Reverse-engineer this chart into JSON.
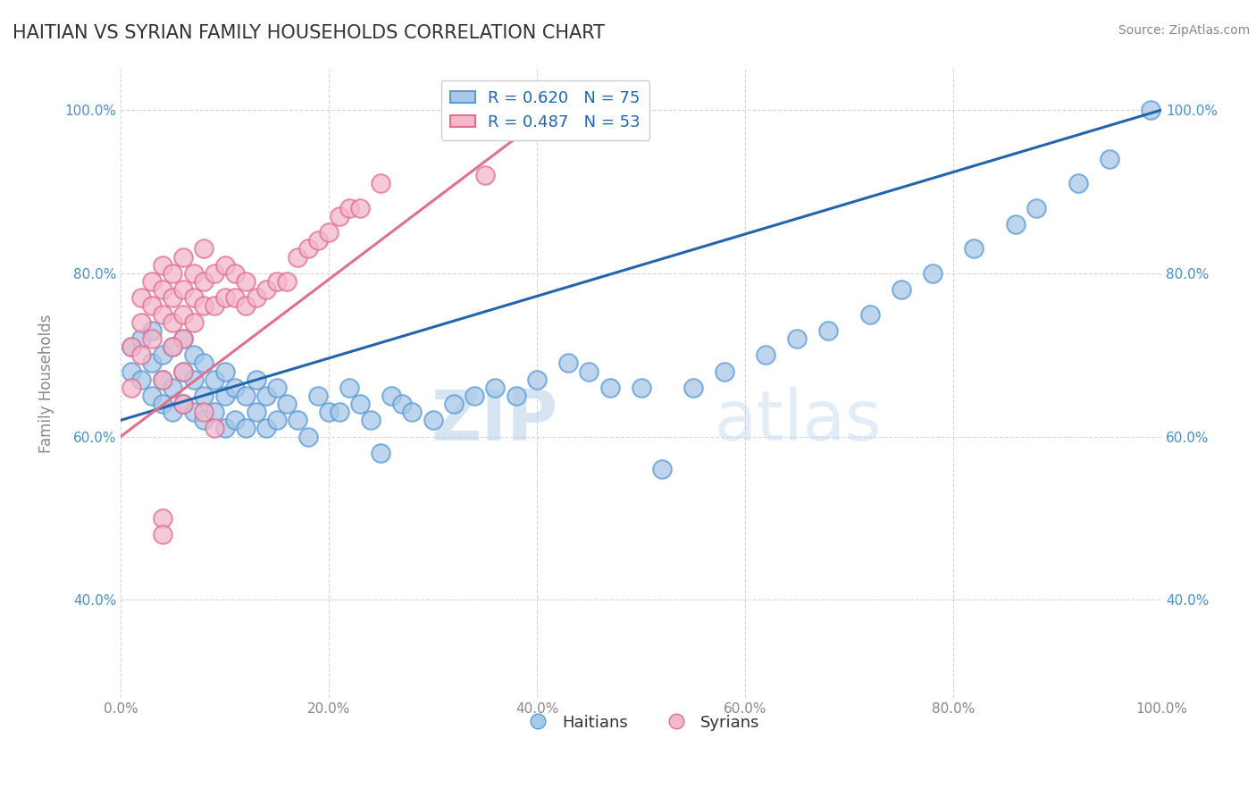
{
  "title": "HAITIAN VS SYRIAN FAMILY HOUSEHOLDS CORRELATION CHART",
  "source": "Source: ZipAtlas.com",
  "ylabel": "Family Households",
  "watermark_zip": "ZIP",
  "watermark_atlas": "atlas",
  "xlim": [
    0.0,
    1.0
  ],
  "ylim": [
    0.28,
    1.05
  ],
  "xticks": [
    0.0,
    0.2,
    0.4,
    0.6,
    0.8,
    1.0
  ],
  "yticks": [
    0.4,
    0.6,
    0.8,
    1.0
  ],
  "xticklabels": [
    "0.0%",
    "20.0%",
    "40.0%",
    "60.0%",
    "80.0%",
    "100.0%"
  ],
  "yticklabels": [
    "40.0%",
    "60.0%",
    "80.0%",
    "100.0%"
  ],
  "haitians_color": "#a8c8e8",
  "haitians_edge": "#5b9bd5",
  "syrians_color": "#f4b8cb",
  "syrians_edge": "#e07090",
  "blue_line_color": "#2166ac",
  "pink_line_color": "#e07090",
  "R_haitians": 0.62,
  "N_haitians": 75,
  "R_syrians": 0.487,
  "N_syrians": 53,
  "legend_R_color": "#2166ac",
  "grid_color": "#cccccc",
  "title_color": "#333333",
  "axis_color": "#888888",
  "blue_trendline_x": [
    0.0,
    1.0
  ],
  "blue_trendline_y": [
    0.62,
    1.0
  ],
  "pink_trendline_x": [
    0.0,
    0.4
  ],
  "pink_trendline_y": [
    0.6,
    0.985
  ],
  "haitians_x": [
    0.01,
    0.01,
    0.02,
    0.02,
    0.03,
    0.03,
    0.03,
    0.04,
    0.04,
    0.04,
    0.05,
    0.05,
    0.05,
    0.06,
    0.06,
    0.06,
    0.07,
    0.07,
    0.07,
    0.08,
    0.08,
    0.08,
    0.09,
    0.09,
    0.1,
    0.1,
    0.1,
    0.11,
    0.11,
    0.12,
    0.12,
    0.13,
    0.13,
    0.14,
    0.14,
    0.15,
    0.15,
    0.16,
    0.17,
    0.18,
    0.19,
    0.2,
    0.21,
    0.22,
    0.23,
    0.24,
    0.25,
    0.26,
    0.27,
    0.28,
    0.3,
    0.32,
    0.34,
    0.36,
    0.38,
    0.4,
    0.43,
    0.45,
    0.47,
    0.5,
    0.52,
    0.55,
    0.58,
    0.62,
    0.65,
    0.68,
    0.72,
    0.75,
    0.78,
    0.82,
    0.86,
    0.88,
    0.92,
    0.95,
    0.99
  ],
  "haitians_y": [
    0.68,
    0.71,
    0.67,
    0.72,
    0.65,
    0.69,
    0.73,
    0.64,
    0.67,
    0.7,
    0.63,
    0.66,
    0.71,
    0.64,
    0.68,
    0.72,
    0.63,
    0.67,
    0.7,
    0.62,
    0.65,
    0.69,
    0.63,
    0.67,
    0.61,
    0.65,
    0.68,
    0.62,
    0.66,
    0.61,
    0.65,
    0.63,
    0.67,
    0.61,
    0.65,
    0.62,
    0.66,
    0.64,
    0.62,
    0.6,
    0.65,
    0.63,
    0.63,
    0.66,
    0.64,
    0.62,
    0.58,
    0.65,
    0.64,
    0.63,
    0.62,
    0.64,
    0.65,
    0.66,
    0.65,
    0.67,
    0.69,
    0.68,
    0.66,
    0.66,
    0.56,
    0.66,
    0.68,
    0.7,
    0.72,
    0.73,
    0.75,
    0.78,
    0.8,
    0.83,
    0.86,
    0.88,
    0.91,
    0.94,
    1.0
  ],
  "syrians_x": [
    0.01,
    0.01,
    0.02,
    0.02,
    0.02,
    0.03,
    0.03,
    0.03,
    0.04,
    0.04,
    0.04,
    0.05,
    0.05,
    0.05,
    0.06,
    0.06,
    0.06,
    0.06,
    0.07,
    0.07,
    0.07,
    0.08,
    0.08,
    0.08,
    0.09,
    0.09,
    0.1,
    0.1,
    0.11,
    0.11,
    0.12,
    0.12,
    0.13,
    0.14,
    0.15,
    0.16,
    0.17,
    0.18,
    0.19,
    0.2,
    0.21,
    0.22,
    0.23,
    0.25,
    0.04,
    0.05,
    0.06,
    0.06,
    0.08,
    0.09,
    0.35,
    0.04,
    0.04
  ],
  "syrians_y": [
    0.66,
    0.71,
    0.7,
    0.74,
    0.77,
    0.72,
    0.76,
    0.79,
    0.75,
    0.78,
    0.81,
    0.74,
    0.77,
    0.8,
    0.72,
    0.75,
    0.78,
    0.82,
    0.74,
    0.77,
    0.8,
    0.76,
    0.79,
    0.83,
    0.76,
    0.8,
    0.77,
    0.81,
    0.77,
    0.8,
    0.76,
    0.79,
    0.77,
    0.78,
    0.79,
    0.79,
    0.82,
    0.83,
    0.84,
    0.85,
    0.87,
    0.88,
    0.88,
    0.91,
    0.67,
    0.71,
    0.64,
    0.68,
    0.63,
    0.61,
    0.92,
    0.5,
    0.48
  ]
}
